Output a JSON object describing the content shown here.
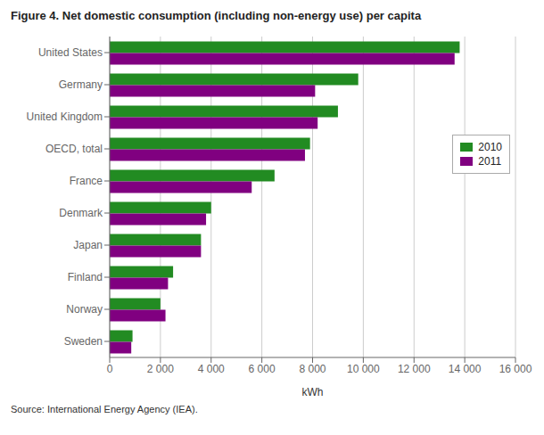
{
  "chart_data": {
    "type": "bar",
    "orientation": "horizontal",
    "title": "Figure 4. Net domestic consumption (including non-energy use) per capita",
    "categories": [
      "United States",
      "Germany",
      "United Kingdom",
      "OECD, total",
      "France",
      "Denmark",
      "Japan",
      "Finland",
      "Norway",
      "Sweden"
    ],
    "series": [
      {
        "name": "2010",
        "color": "#228B22",
        "values": [
          13800,
          9800,
          9000,
          7900,
          6500,
          4000,
          3600,
          2500,
          2000,
          900
        ]
      },
      {
        "name": "2011",
        "color": "#800080",
        "values": [
          13600,
          8100,
          8200,
          7700,
          5600,
          3800,
          3600,
          2300,
          2200,
          850
        ]
      }
    ],
    "xlabel": "kWh",
    "xlim": [
      0,
      16000
    ],
    "xticks": [
      0,
      {
        "value": 2000,
        "label": "2 000"
      },
      {
        "value": 4000,
        "label": "4 000"
      },
      {
        "value": 6000,
        "label": "6 000"
      },
      {
        "value": 8000,
        "label": "8 000"
      },
      {
        "value": 10000,
        "label": "10 000"
      },
      {
        "value": 12000,
        "label": "12 000"
      },
      {
        "value": 14000,
        "label": "14 000"
      },
      {
        "value": 16000,
        "label": "16 000"
      }
    ],
    "grid": true,
    "legend": "upper right",
    "annotations": [
      "Source: International Energy Agency (IEA)."
    ]
  }
}
